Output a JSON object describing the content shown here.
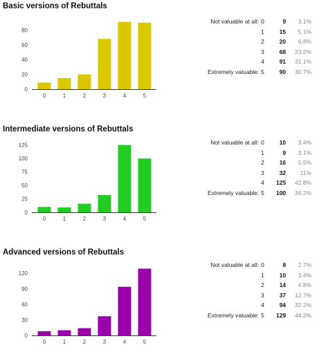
{
  "chart_data": [
    {
      "type": "bar",
      "title": "Basic versions of Rebuttals",
      "categories": [
        "0",
        "1",
        "2",
        "3",
        "4",
        "5"
      ],
      "values": [
        9,
        15,
        20,
        68,
        91,
        90
      ],
      "color": "#d9c800",
      "ylim": [
        0,
        100
      ],
      "yticks": [
        0,
        20,
        40,
        60,
        80
      ],
      "grid": false,
      "stats": [
        {
          "label": "Not valuable at all:",
          "score": "0",
          "count": "9",
          "pct": "3.1%"
        },
        {
          "label": "",
          "score": "1",
          "count": "15",
          "pct": "5.1%"
        },
        {
          "label": "",
          "score": "2",
          "count": "20",
          "pct": "6.8%"
        },
        {
          "label": "",
          "score": "3",
          "count": "68",
          "pct": "23.2%"
        },
        {
          "label": "",
          "score": "4",
          "count": "91",
          "pct": "31.1%"
        },
        {
          "label": "Extremely valuable:",
          "score": "5",
          "count": "90",
          "pct": "30.7%"
        }
      ]
    },
    {
      "type": "bar",
      "title": "Intermediate versions of Rebuttals",
      "categories": [
        "0",
        "1",
        "2",
        "3",
        "4",
        "5"
      ],
      "values": [
        10,
        9,
        16,
        32,
        125,
        100
      ],
      "color": "#22cc22",
      "ylim": [
        0,
        137.5
      ],
      "yticks": [
        0,
        25,
        50,
        75,
        100,
        125
      ],
      "grid": false,
      "stats": [
        {
          "label": "Not valuable at all:",
          "score": "0",
          "count": "10",
          "pct": "3.4%"
        },
        {
          "label": "",
          "score": "1",
          "count": "9",
          "pct": "3.1%"
        },
        {
          "label": "",
          "score": "2",
          "count": "16",
          "pct": "5.5%"
        },
        {
          "label": "",
          "score": "3",
          "count": "32",
          "pct": "11%"
        },
        {
          "label": "",
          "score": "4",
          "count": "125",
          "pct": "42.8%"
        },
        {
          "label": "Extremely valuable:",
          "score": "5",
          "count": "100",
          "pct": "34.2%"
        }
      ]
    },
    {
      "type": "bar",
      "title": "Advanced versions of Rebuttals",
      "categories": [
        "0",
        "1",
        "2",
        "3",
        "4",
        "5"
      ],
      "values": [
        8,
        10,
        14,
        37,
        94,
        129
      ],
      "color": "#9900aa",
      "ylim": [
        0,
        143
      ],
      "yticks": [
        0,
        30,
        60,
        90,
        120
      ],
      "grid": false,
      "stats": [
        {
          "label": "Not valuable at all:",
          "score": "0",
          "count": "8",
          "pct": "2.7%"
        },
        {
          "label": "",
          "score": "1",
          "count": "10",
          "pct": "3.4%"
        },
        {
          "label": "",
          "score": "2",
          "count": "14",
          "pct": "4.8%"
        },
        {
          "label": "",
          "score": "3",
          "count": "37",
          "pct": "12.7%"
        },
        {
          "label": "",
          "score": "4",
          "count": "94",
          "pct": "32.2%"
        },
        {
          "label": "Extremely valuable:",
          "score": "5",
          "count": "129",
          "pct": "44.2%"
        }
      ]
    }
  ]
}
